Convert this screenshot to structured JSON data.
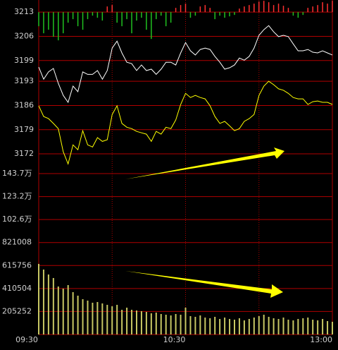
{
  "chart_data": {
    "type": "intraday",
    "xlim": [
      0,
      60
    ],
    "xticks": [
      {
        "value": 0,
        "label": "09:30"
      },
      {
        "value": 30,
        "label": "10:30"
      },
      {
        "value": 60,
        "label": "13:00"
      }
    ],
    "ylim": [
      3166.5,
      3216.5
    ],
    "yticks": [
      3213,
      3206,
      3199,
      3193,
      3186,
      3179,
      3172
    ],
    "grid_color": "#b00000",
    "series": [
      {
        "color": "#ffffff",
        "values": [
          3197.1,
          3193.6,
          3195.7,
          3196.7,
          3192.4,
          3188.9,
          3186.9,
          3191.6,
          3190.0,
          3195.7,
          3195.0,
          3195.0,
          3196.1,
          3193.6,
          3196.1,
          3202.6,
          3204.6,
          3201.2,
          3198.5,
          3198.1,
          3196.1,
          3197.7,
          3196.1,
          3196.5,
          3195.0,
          3196.5,
          3198.5,
          3198.5,
          3197.7,
          3201.2,
          3204.2,
          3201.8,
          3200.6,
          3202.2,
          3202.6,
          3202.2,
          3200.2,
          3198.5,
          3196.5,
          3196.9,
          3197.7,
          3199.7,
          3199.1,
          3200.2,
          3202.6,
          3206.3,
          3207.9,
          3209.1,
          3207.3,
          3205.9,
          3206.3,
          3205.9,
          3203.8,
          3201.8,
          3201.8,
          3202.2,
          3201.4,
          3201.2,
          3201.8,
          3201.2,
          3200.6
        ]
      },
      {
        "color": "#ffff00",
        "values": [
          3185.9,
          3182.8,
          3182.2,
          3180.8,
          3179.3,
          3172.6,
          3169.1,
          3174.6,
          3173.2,
          3178.7,
          3174.6,
          3174.0,
          3176.7,
          3175.6,
          3176.1,
          3183.4,
          3185.9,
          3180.8,
          3179.7,
          3179.3,
          3178.5,
          3178.1,
          3177.7,
          3175.6,
          3178.5,
          3177.7,
          3179.7,
          3179.3,
          3181.8,
          3186.3,
          3189.5,
          3188.3,
          3188.9,
          3188.3,
          3187.9,
          3185.9,
          3182.8,
          3180.8,
          3181.4,
          3180.1,
          3178.7,
          3179.3,
          3181.4,
          3182.2,
          3183.4,
          3188.9,
          3191.6,
          3193.0,
          3192.0,
          3190.8,
          3190.4,
          3189.5,
          3188.3,
          3187.9,
          3187.9,
          3186.3,
          3187.1,
          3187.3,
          3186.9,
          3186.9,
          3186.3
        ]
      }
    ],
    "strength": {
      "up_color": "#ff3030",
      "down_color": "#20c020",
      "values": [
        -20,
        -30,
        -25,
        -35,
        -40,
        -30,
        -15,
        -10,
        -20,
        -25,
        -10,
        -5,
        -8,
        -12,
        8,
        10,
        -15,
        -20,
        -10,
        -30,
        -12,
        -8,
        -25,
        -38,
        -10,
        -5,
        -20,
        -15,
        6,
        10,
        12,
        -8,
        -5,
        8,
        10,
        6,
        -10,
        -5,
        -8,
        -6,
        -4,
        5,
        8,
        10,
        12,
        15,
        16,
        14,
        10,
        12,
        9,
        6,
        -5,
        -8,
        -4,
        6,
        8,
        10,
        14,
        12,
        16
      ]
    },
    "volume": {
      "color": "#c8c864",
      "ylim": [
        0,
        1436764
      ],
      "yticks": [
        {
          "value": 1436764,
          "label": "143.7万"
        },
        {
          "value": 1231512,
          "label": "123.2万"
        },
        {
          "value": 1026260,
          "label": "102.6万"
        },
        821008,
        615756,
        410504,
        205252
      ],
      "values": [
        630200,
        579800,
        535700,
        504200,
        428500,
        409600,
        441100,
        378100,
        346600,
        315100,
        302500,
        283600,
        289900,
        277300,
        264700,
        252100,
        264700,
        220600,
        239500,
        220600,
        214300,
        208000,
        201700,
        189100,
        195400,
        182800,
        176500,
        170200,
        182800,
        176500,
        239500,
        163900,
        157600,
        170200,
        151200,
        144900,
        157600,
        138600,
        151200,
        138600,
        132300,
        144900,
        126000,
        138600,
        151200,
        163900,
        176500,
        157600,
        144900,
        138600,
        151200,
        132300,
        126000,
        138600,
        144900,
        151200,
        132300,
        126000,
        138600,
        119700,
        113400
      ]
    }
  }
}
